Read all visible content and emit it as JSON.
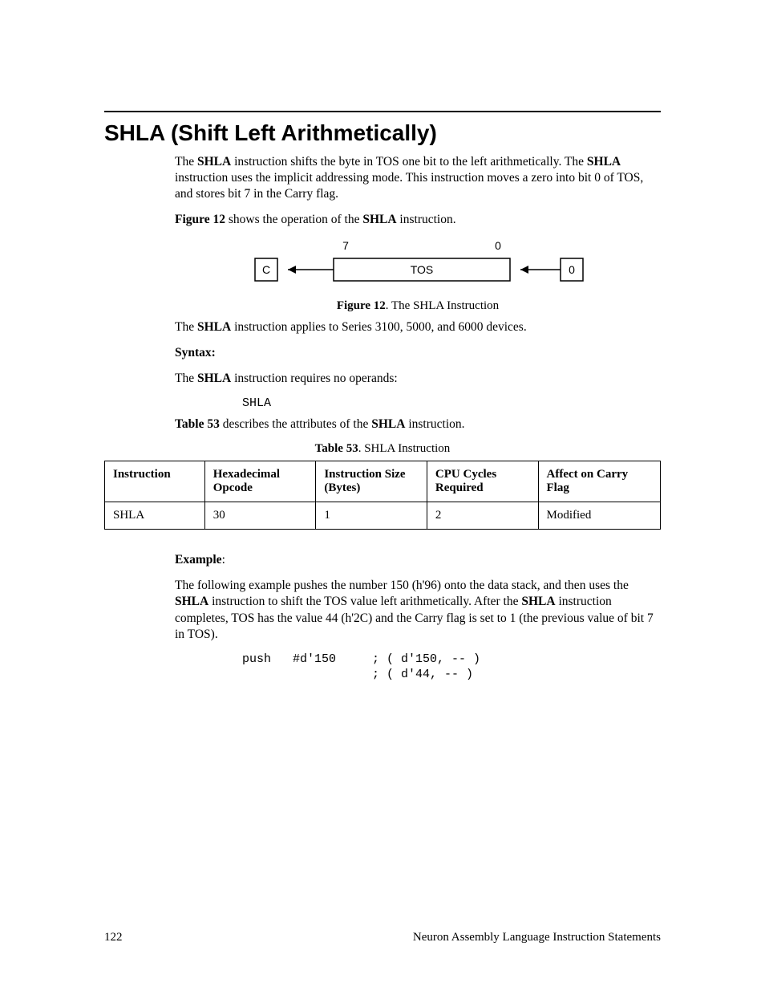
{
  "heading": "SHLA (Shift Left Arithmetically)",
  "intro_para": {
    "t1": "The ",
    "b1": "SHLA",
    "t2": " instruction shifts the byte in TOS one bit to the left arithmetically. The ",
    "b2": "SHLA",
    "t3": " instruction uses the implicit addressing mode.  This instruction moves a zero into bit 0 of TOS, and stores bit 7 in the Carry flag."
  },
  "figref_para": {
    "b1": "Figure 12",
    "t1": " shows the operation of the ",
    "b2": "SHLA",
    "t2": " instruction."
  },
  "figure": {
    "bit7_label": "7",
    "bit0_label": "0",
    "c_box": "C",
    "tos_box": "TOS",
    "zero_box": "0",
    "box_stroke": "#000000",
    "box_fill": "#ffffff",
    "font_family": "Arial, Helvetica, sans-serif",
    "font_size": 14
  },
  "figure_caption": {
    "b": "Figure 12",
    "t": ". The SHLA Instruction"
  },
  "applies_para": {
    "t1": "The ",
    "b1": "SHLA",
    "t2": " instruction applies to Series 3100, 5000, and 6000 devices."
  },
  "syntax_label": "Syntax",
  "syntax_para": {
    "t1": "The ",
    "b1": "SHLA",
    "t2": " instruction requires no operands:"
  },
  "syntax_code": "SHLA",
  "tableref_para": {
    "b1": "Table 53",
    "t1": " describes the attributes of the ",
    "b2": "SHLA",
    "t2": " instruction."
  },
  "table_caption": {
    "b": "Table 53",
    "t": ". SHLA Instruction"
  },
  "table": {
    "columns": [
      "Instruction",
      "Hexadecimal Opcode",
      "Instruction Size (Bytes)",
      "CPU Cycles Required",
      "Affect on Carry Flag"
    ],
    "col_widths_pct": [
      18,
      20,
      20,
      20,
      22
    ],
    "rows": [
      [
        "SHLA",
        "30",
        "1",
        "2",
        "Modified"
      ]
    ]
  },
  "example_label": "Example",
  "example_para": {
    "t1": "The following example pushes the number 150 (h'96) onto the data stack, and then uses the ",
    "b1": "SHLA",
    "t2": " instruction to shift the TOS value left arithmetically.  After the ",
    "b2": "SHLA",
    "t3": " instruction completes, TOS has the value 44 (h'2C) and the Carry flag is set to 1 (the previous value of bit 7 in TOS)."
  },
  "example_code": "push   #d'150     ; ( d'150, -- )\n                  ; ( d'44, -- )",
  "footer": {
    "page_number": "122",
    "section_title": "Neuron Assembly Language Instruction Statements"
  }
}
